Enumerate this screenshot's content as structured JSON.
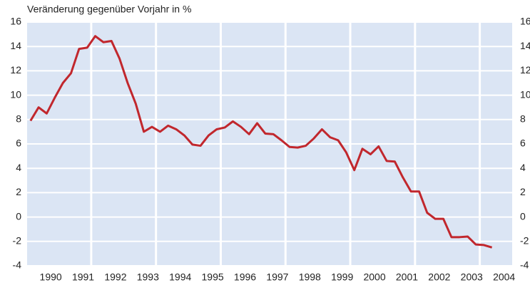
{
  "chart_data": {
    "type": "line",
    "title": "Veränderung gegenüber Vorjahr in %",
    "x": [
      1989.875,
      1990.125,
      1990.375,
      1990.625,
      1990.875,
      1991.125,
      1991.375,
      1991.625,
      1991.875,
      1992.125,
      1992.375,
      1992.625,
      1992.875,
      1993.125,
      1993.375,
      1993.625,
      1993.875,
      1994.125,
      1994.375,
      1994.625,
      1994.875,
      1995.125,
      1995.375,
      1995.625,
      1995.875,
      1996.125,
      1996.375,
      1996.625,
      1996.875,
      1997.125,
      1997.375,
      1997.625,
      1997.875,
      1998.125,
      1998.375,
      1998.625,
      1998.875,
      1999.125,
      1999.375,
      1999.625,
      1999.875,
      2000.125,
      2000.375,
      2000.625,
      2000.875,
      2001.125,
      2001.375,
      2001.625,
      2001.875,
      2002.125,
      2002.375,
      2002.625,
      2002.875,
      2003.125,
      2003.375,
      2003.625,
      2003.875,
      2004.125
    ],
    "series": [
      {
        "color": "#c1272d",
        "values": [
          7.9,
          9.0,
          8.5,
          9.8,
          11.0,
          11.8,
          13.8,
          13.9,
          14.85,
          14.35,
          14.45,
          13.0,
          11.0,
          9.3,
          7.0,
          7.4,
          7.0,
          7.5,
          7.2,
          6.7,
          5.95,
          5.85,
          6.7,
          7.2,
          7.35,
          7.85,
          7.4,
          6.8,
          7.7,
          6.85,
          6.8,
          6.3,
          5.75,
          5.7,
          5.85,
          6.45,
          7.2,
          6.55,
          6.3,
          5.3,
          3.85,
          5.6,
          5.15,
          5.8,
          4.6,
          4.55,
          3.25,
          2.1,
          2.1,
          0.35,
          -0.15,
          -0.15,
          -1.65,
          -1.65,
          -1.6,
          -2.25,
          -2.3,
          -2.5
        ]
      }
    ],
    "xlim": [
      1989.77,
      2004.75
    ],
    "xticks": [
      {
        "value": 1990.5,
        "label": "1990"
      },
      {
        "value": 1991.5,
        "label": "1991"
      },
      {
        "value": 1992.5,
        "label": "1992"
      },
      {
        "value": 1993.5,
        "label": "1993"
      },
      {
        "value": 1994.5,
        "label": "1994"
      },
      {
        "value": 1995.5,
        "label": "1995"
      },
      {
        "value": 1996.5,
        "label": "1996"
      },
      {
        "value": 1997.5,
        "label": "1997"
      },
      {
        "value": 1998.5,
        "label": "1998"
      },
      {
        "value": 1999.5,
        "label": "1999"
      },
      {
        "value": 2000.5,
        "label": "2000"
      },
      {
        "value": 2001.5,
        "label": "2001"
      },
      {
        "value": 2002.5,
        "label": "2002"
      },
      {
        "value": 2003.5,
        "label": "2003"
      },
      {
        "value": 2004.5,
        "label": "2004"
      }
    ],
    "xgrid_lines": [
      1991.75,
      1993.75,
      1995.75,
      1997.75,
      1999.75,
      2001.75,
      2003.75
    ],
    "ylim": [
      -4,
      16
    ],
    "yticks": [
      -4,
      -2,
      0,
      2,
      4,
      6,
      8,
      10,
      12,
      14,
      16
    ],
    "grid": true,
    "background": "#dbe5f4"
  }
}
